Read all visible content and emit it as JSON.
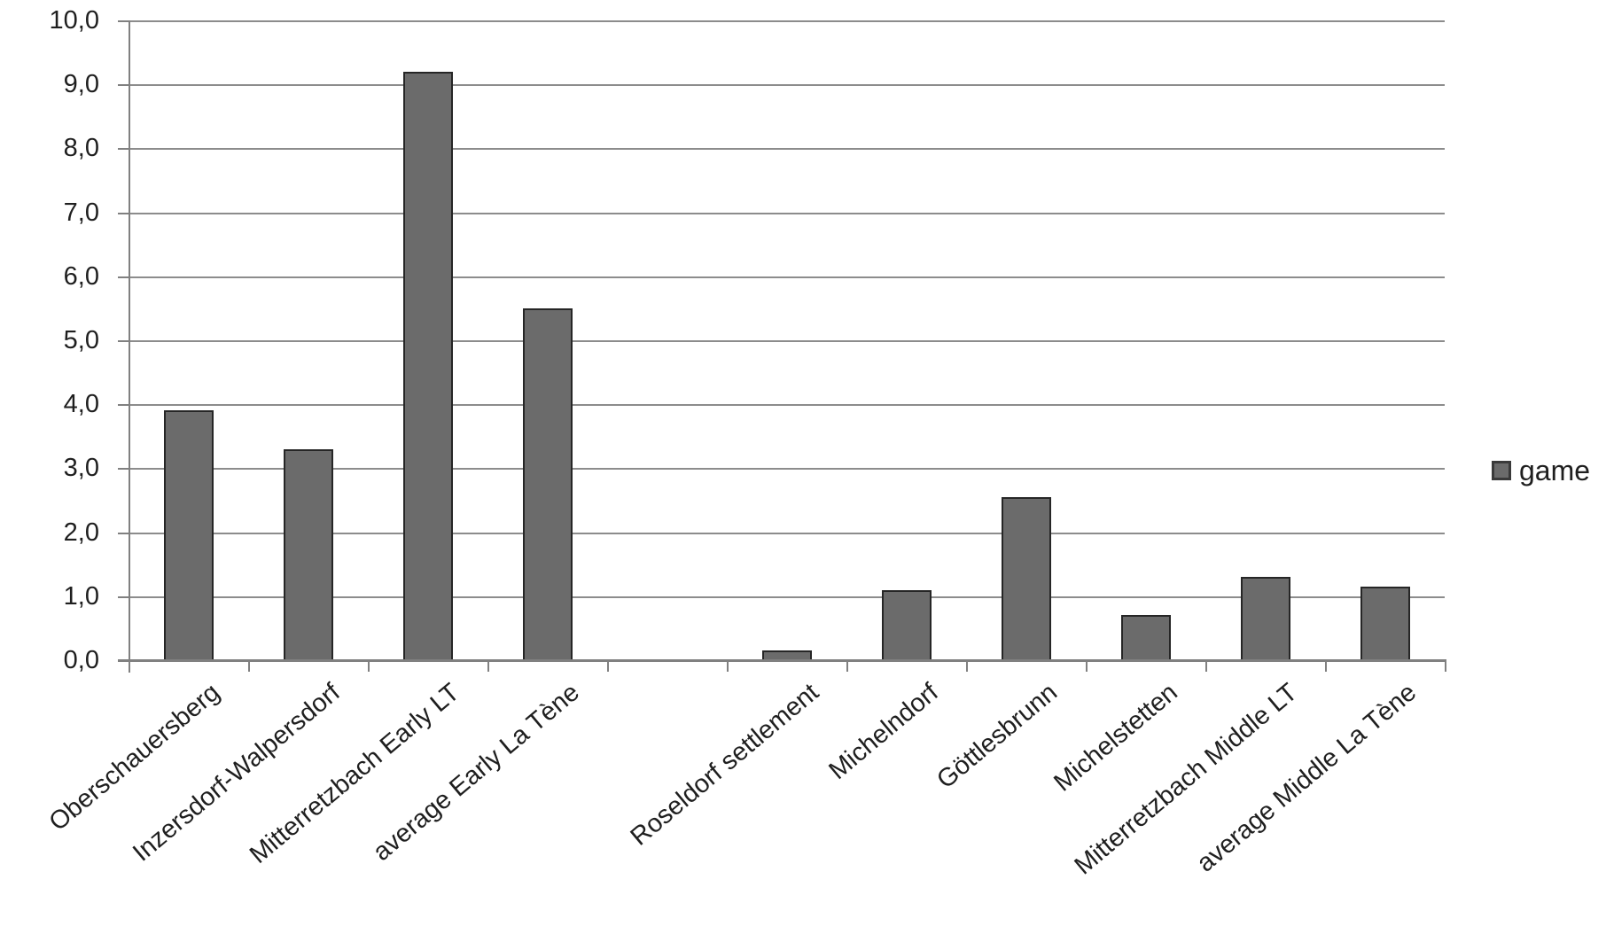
{
  "chart_data": {
    "type": "bar",
    "title": "",
    "xlabel": "",
    "ylabel": "",
    "categories": [
      "Oberschauersberg",
      "Inzersdorf-Walpersdorf",
      "Mitterretzbach Early LT",
      "average Early La Tène",
      "",
      "Roseldorf settlement",
      "Michelndorf",
      "Göttlesbrunn",
      "Michelstetten",
      "Mitterretzbach Middle LT",
      "average Middle La Tène"
    ],
    "series": [
      {
        "name": "game",
        "values": [
          3.9,
          3.3,
          9.2,
          5.5,
          null,
          0.15,
          1.1,
          2.55,
          0.7,
          1.3,
          1.15
        ]
      }
    ],
    "ylim": [
      0,
      10
    ],
    "y_tick_labels": [
      "10,0",
      "9,0",
      "8,0",
      "7,0",
      "6,0",
      "5,0",
      "4,0",
      "3,0",
      "2,0",
      "1,0",
      "0,0"
    ],
    "grid": true,
    "legend_position": "right",
    "colors": {
      "bar_fill": "#6b6b6b",
      "bar_border": "#262626",
      "gridline": "#8c8c8c",
      "axis": "#808080",
      "text": "#1f1f1f",
      "background": "#ffffff"
    }
  },
  "legend": {
    "label": "game"
  }
}
